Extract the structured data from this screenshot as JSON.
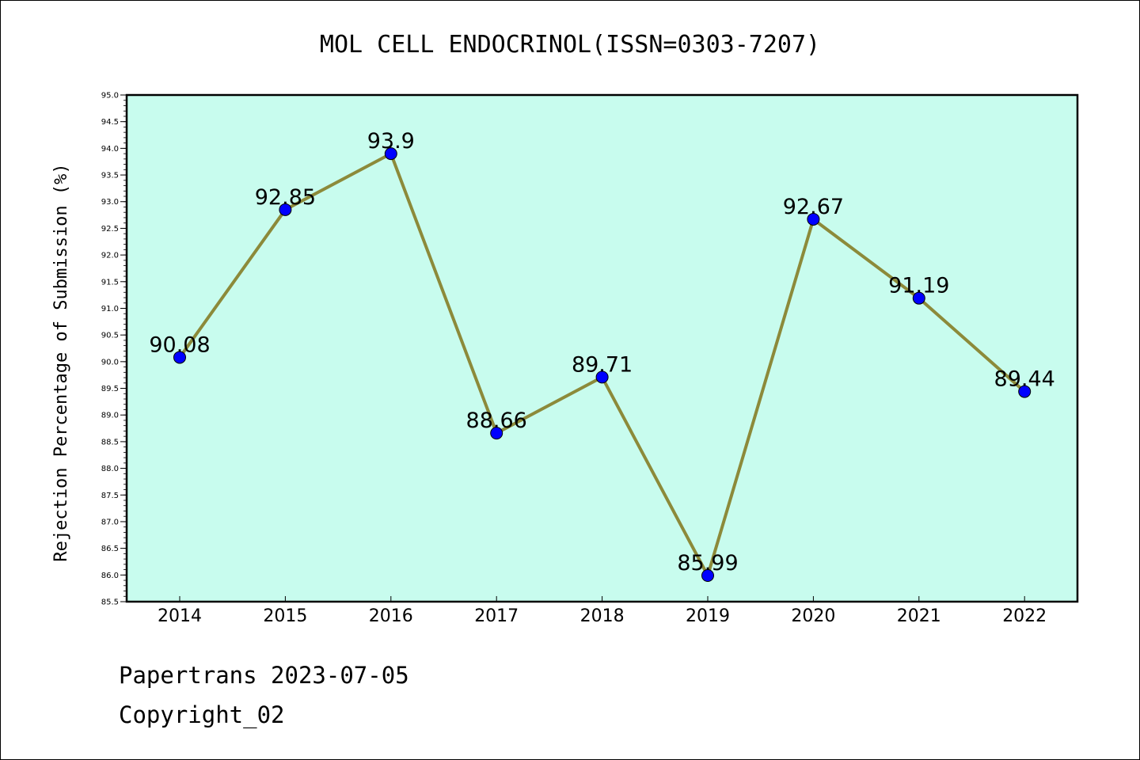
{
  "chart_data": {
    "type": "line",
    "title": "MOL CELL ENDOCRINOL(ISSN=0303-7207)",
    "xlabel": "",
    "ylabel": "Rejection Percentage of Submission (%)",
    "categories": [
      "2014",
      "2015",
      "2016",
      "2017",
      "2018",
      "2019",
      "2020",
      "2021",
      "2022"
    ],
    "series": [
      {
        "values": [
          90.08,
          92.85,
          93.9,
          88.66,
          89.71,
          85.99,
          92.67,
          91.19,
          89.44
        ],
        "labels": [
          "90.08",
          "92.85",
          "93.9",
          "88.66",
          "89.71",
          "85.99",
          "92.67",
          "91.19",
          "89.44"
        ],
        "line_color": "#8c8a3a",
        "marker_color": "#0000ff"
      }
    ],
    "ylim": [
      85.5,
      95.0
    ],
    "yticks": [
      "85.5",
      "86.0",
      "86.5",
      "87.0",
      "87.5",
      "88.0",
      "88.5",
      "89.0",
      "89.5",
      "90.0",
      "90.5",
      "91.0",
      "91.5",
      "92.0",
      "92.5",
      "93.0",
      "93.5",
      "94.0",
      "94.5",
      "95.0"
    ],
    "plot_background": "#c8fcee",
    "grid": false,
    "legend": "none"
  },
  "footer": {
    "line1": "Papertrans 2023-07-05",
    "line2": "Copyright_02"
  }
}
